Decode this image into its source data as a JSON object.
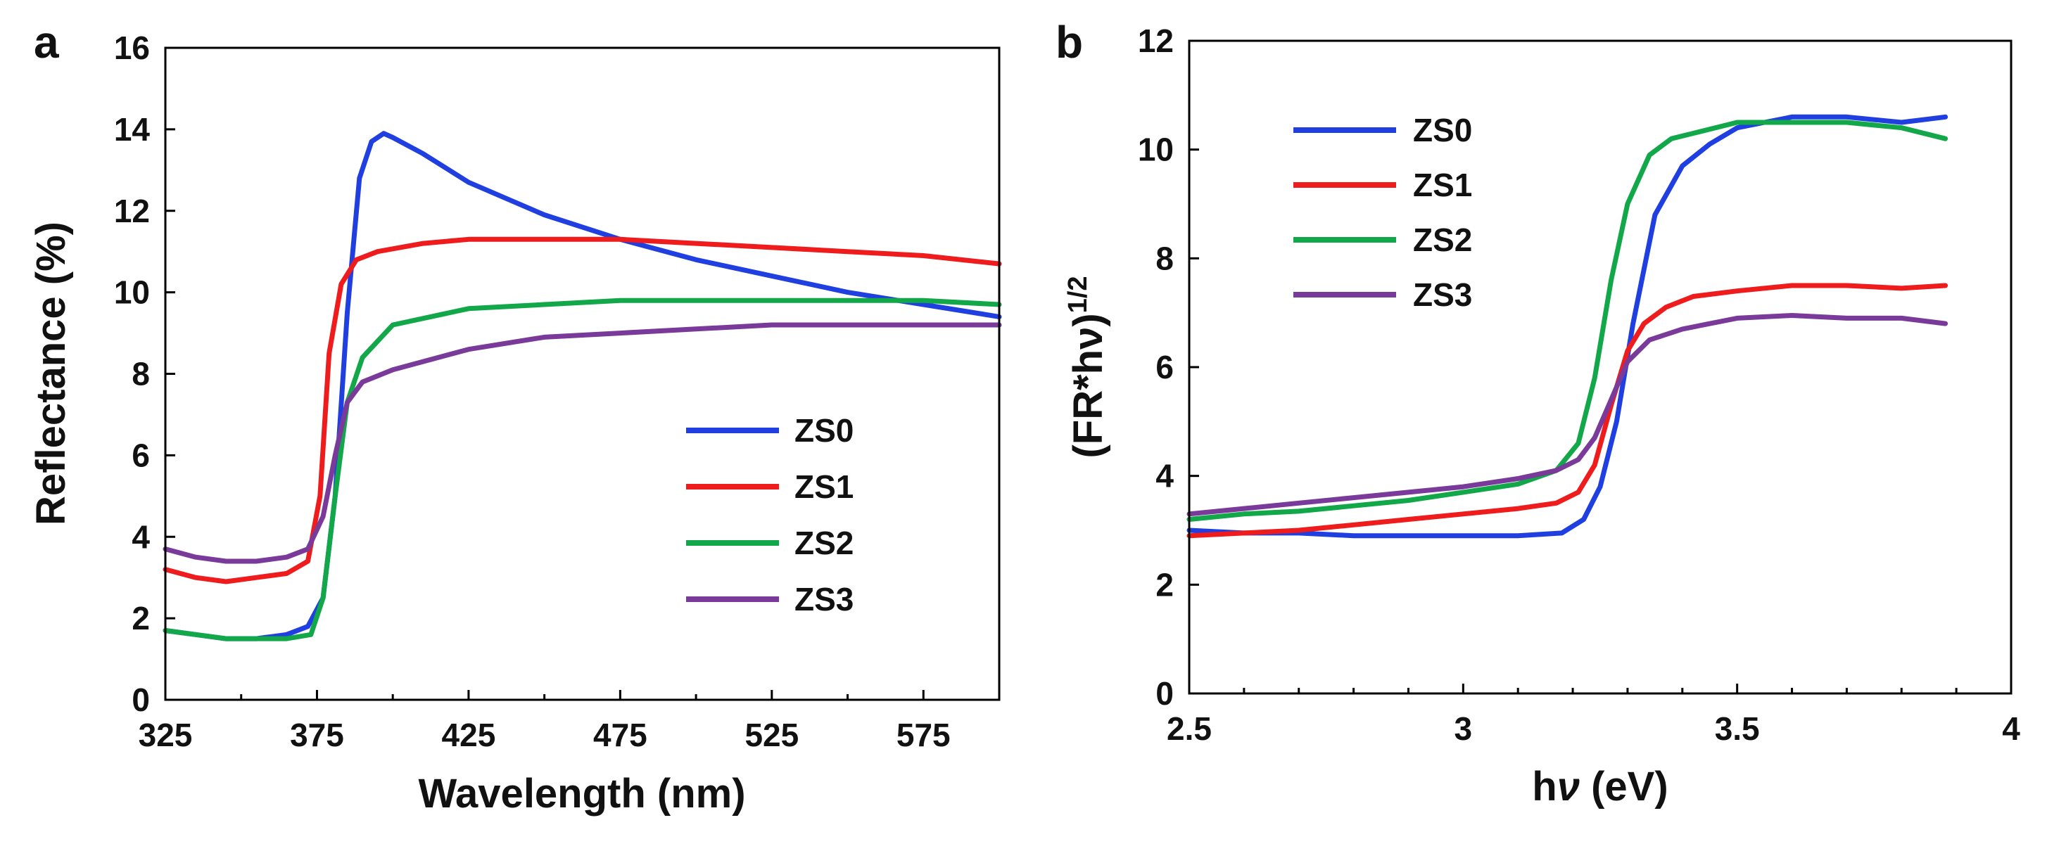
{
  "chart_data": [
    {
      "type": "line",
      "panel_label": "a",
      "title": "",
      "xlabel": "Wavelength (nm)",
      "ylabel": "Reflectance (%)",
      "xlim": [
        325,
        600
      ],
      "ylim": [
        0,
        16
      ],
      "xticks": [
        "325",
        "375",
        "425",
        "475",
        "525",
        "575"
      ],
      "yticks": [
        "0",
        "2",
        "4",
        "6",
        "8",
        "10",
        "12",
        "14",
        "16"
      ],
      "xtick_values": [
        325,
        375,
        425,
        475,
        525,
        575
      ],
      "ytick_values": [
        0,
        2,
        4,
        6,
        8,
        10,
        12,
        14,
        16
      ],
      "grid": false,
      "legend_position": "bottom-right",
      "series": [
        {
          "name": "ZS0",
          "color": "#1f3fe0",
          "x": [
            325,
            335,
            345,
            355,
            365,
            372,
            377,
            381,
            385,
            389,
            393,
            397,
            400,
            410,
            425,
            450,
            475,
            500,
            525,
            550,
            575,
            600
          ],
          "y": [
            1.7,
            1.6,
            1.5,
            1.5,
            1.6,
            1.8,
            2.5,
            5.0,
            9.5,
            12.8,
            13.7,
            13.9,
            13.8,
            13.4,
            12.7,
            11.9,
            11.3,
            10.8,
            10.4,
            10.0,
            9.7,
            9.4
          ]
        },
        {
          "name": "ZS1",
          "color": "#ee1c1c",
          "x": [
            325,
            335,
            345,
            355,
            365,
            372,
            376,
            379,
            383,
            388,
            395,
            410,
            425,
            450,
            475,
            500,
            525,
            550,
            575,
            600
          ],
          "y": [
            3.2,
            3.0,
            2.9,
            3.0,
            3.1,
            3.4,
            5.0,
            8.5,
            10.2,
            10.8,
            11.0,
            11.2,
            11.3,
            11.3,
            11.3,
            11.2,
            11.1,
            11.0,
            10.9,
            10.7
          ]
        },
        {
          "name": "ZS2",
          "color": "#12a84a",
          "x": [
            325,
            335,
            345,
            355,
            365,
            373,
            377,
            381,
            385,
            390,
            400,
            425,
            450,
            475,
            500,
            525,
            550,
            575,
            600
          ],
          "y": [
            1.7,
            1.6,
            1.5,
            1.5,
            1.5,
            1.6,
            2.5,
            5.0,
            7.3,
            8.4,
            9.2,
            9.6,
            9.7,
            9.8,
            9.8,
            9.8,
            9.8,
            9.8,
            9.7
          ]
        },
        {
          "name": "ZS3",
          "color": "#7a3a9a",
          "x": [
            325,
            335,
            345,
            355,
            365,
            372,
            377,
            381,
            385,
            390,
            400,
            425,
            450,
            475,
            500,
            525,
            550,
            575,
            600
          ],
          "y": [
            3.7,
            3.5,
            3.4,
            3.4,
            3.5,
            3.7,
            4.5,
            6.0,
            7.3,
            7.8,
            8.1,
            8.6,
            8.9,
            9.0,
            9.1,
            9.2,
            9.2,
            9.2,
            9.2
          ]
        }
      ]
    },
    {
      "type": "line",
      "panel_label": "b",
      "title": "",
      "xlabel": "hν (eV)",
      "ylabel": "(FR*hν)^1/2",
      "xlim": [
        2.5,
        4.0
      ],
      "ylim": [
        0,
        12
      ],
      "xticks": [
        "2.5",
        "3",
        "3.5",
        "4"
      ],
      "yticks": [
        "0",
        "2",
        "4",
        "6",
        "8",
        "10",
        "12"
      ],
      "xtick_values": [
        2.5,
        3.0,
        3.5,
        4.0
      ],
      "ytick_values": [
        0,
        2,
        4,
        6,
        8,
        10,
        12
      ],
      "grid": false,
      "legend_position": "top-left",
      "series": [
        {
          "name": "ZS0",
          "color": "#1f3fe0",
          "x": [
            2.5,
            2.6,
            2.7,
            2.8,
            2.9,
            3.0,
            3.1,
            3.18,
            3.22,
            3.25,
            3.28,
            3.31,
            3.35,
            3.4,
            3.45,
            3.5,
            3.55,
            3.6,
            3.7,
            3.8,
            3.88
          ],
          "y": [
            3.0,
            2.95,
            2.95,
            2.9,
            2.9,
            2.9,
            2.9,
            2.95,
            3.2,
            3.8,
            5.0,
            6.8,
            8.8,
            9.7,
            10.1,
            10.4,
            10.5,
            10.6,
            10.6,
            10.5,
            10.6
          ]
        },
        {
          "name": "ZS1",
          "color": "#ee1c1c",
          "x": [
            2.5,
            2.6,
            2.7,
            2.8,
            2.9,
            3.0,
            3.1,
            3.17,
            3.21,
            3.24,
            3.27,
            3.3,
            3.33,
            3.37,
            3.42,
            3.5,
            3.6,
            3.7,
            3.8,
            3.88
          ],
          "y": [
            2.9,
            2.95,
            3.0,
            3.1,
            3.2,
            3.3,
            3.4,
            3.5,
            3.7,
            4.2,
            5.3,
            6.3,
            6.8,
            7.1,
            7.3,
            7.4,
            7.5,
            7.5,
            7.45,
            7.5
          ]
        },
        {
          "name": "ZS2",
          "color": "#12a84a",
          "x": [
            2.5,
            2.6,
            2.7,
            2.8,
            2.9,
            3.0,
            3.1,
            3.17,
            3.21,
            3.24,
            3.27,
            3.3,
            3.34,
            3.38,
            3.42,
            3.5,
            3.6,
            3.7,
            3.8,
            3.88
          ],
          "y": [
            3.2,
            3.3,
            3.35,
            3.45,
            3.55,
            3.7,
            3.85,
            4.1,
            4.6,
            5.8,
            7.6,
            9.0,
            9.9,
            10.2,
            10.3,
            10.5,
            10.5,
            10.5,
            10.4,
            10.2
          ]
        },
        {
          "name": "ZS3",
          "color": "#7a3a9a",
          "x": [
            2.5,
            2.6,
            2.7,
            2.8,
            2.9,
            3.0,
            3.1,
            3.17,
            3.21,
            3.24,
            3.27,
            3.3,
            3.34,
            3.4,
            3.5,
            3.6,
            3.7,
            3.8,
            3.88
          ],
          "y": [
            3.3,
            3.4,
            3.5,
            3.6,
            3.7,
            3.8,
            3.95,
            4.1,
            4.3,
            4.7,
            5.4,
            6.1,
            6.5,
            6.7,
            6.9,
            6.95,
            6.9,
            6.9,
            6.8
          ]
        }
      ]
    }
  ]
}
